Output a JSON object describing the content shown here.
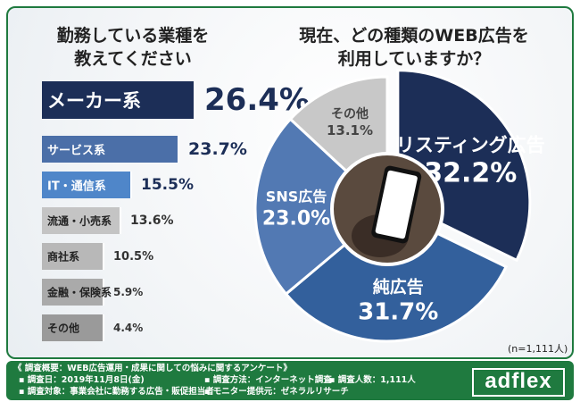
{
  "left_title": [
    "勤務している業種を",
    "教えてください"
  ],
  "right_title": [
    "現在、どの種類のWEB広告を",
    "利用していますか？"
  ],
  "sample_note": "(n=1,111人)",
  "footer": {
    "line1": "《 調査概要：WEB広告運用・成果に関しての悩みに関するアンケート》",
    "line2a": "▪ 調査日：2019年11月8日(金)",
    "line2b": "▪ 調査方法：インターネット調査",
    "line2c": "▪ 調査人数：1,111人",
    "line3a": "▪ 調査対象：事業会社に勤務する広告・販促担当者",
    "line3b": "▪ モニター提供元：ゼネラルリサーチ",
    "logo": "adflex"
  },
  "chart_data": [
    {
      "type": "bar",
      "orientation": "horizontal",
      "title": "勤務している業種を教えてください",
      "categories": [
        "メーカー系",
        "サービス系",
        "IT・通信系",
        "流通・小売系",
        "商社系",
        "金融・保険系",
        "その他"
      ],
      "values": [
        26.4,
        23.7,
        15.5,
        13.6,
        10.5,
        5.9,
        4.4
      ],
      "value_labels": [
        "26.4%",
        "23.7%",
        "15.5%",
        "13.6%",
        "10.5%",
        "5.9%",
        "4.4%"
      ],
      "colors": [
        "#1c2e57",
        "#4b6fa8",
        "#4f86c9",
        "#c4c4c4",
        "#b8b8b8",
        "#aaaaaa",
        "#9a9a9a"
      ],
      "label_colors": [
        "#ffffff",
        "#ffffff",
        "#ffffff",
        "#222222",
        "#222222",
        "#222222",
        "#222222"
      ],
      "value_colors": [
        "#1c2e57",
        "#1c2e57",
        "#1c2e57",
        "#333333",
        "#333333",
        "#333333",
        "#333333"
      ]
    },
    {
      "type": "pie",
      "title": "現在、どの種類のWEB広告を利用していますか？",
      "categories": [
        "リスティング広告",
        "純広告",
        "SNS広告",
        "その他"
      ],
      "values": [
        32.2,
        31.7,
        23.0,
        13.1
      ],
      "value_labels": [
        "32.2%",
        "31.7%",
        "23.0%",
        "13.1%"
      ],
      "colors": [
        "#1c2e57",
        "#33609c",
        "#5279b3",
        "#c8c8c8"
      ],
      "label_colors": [
        "#ffffff",
        "#ffffff",
        "#ffffff",
        "#444444"
      ]
    }
  ]
}
